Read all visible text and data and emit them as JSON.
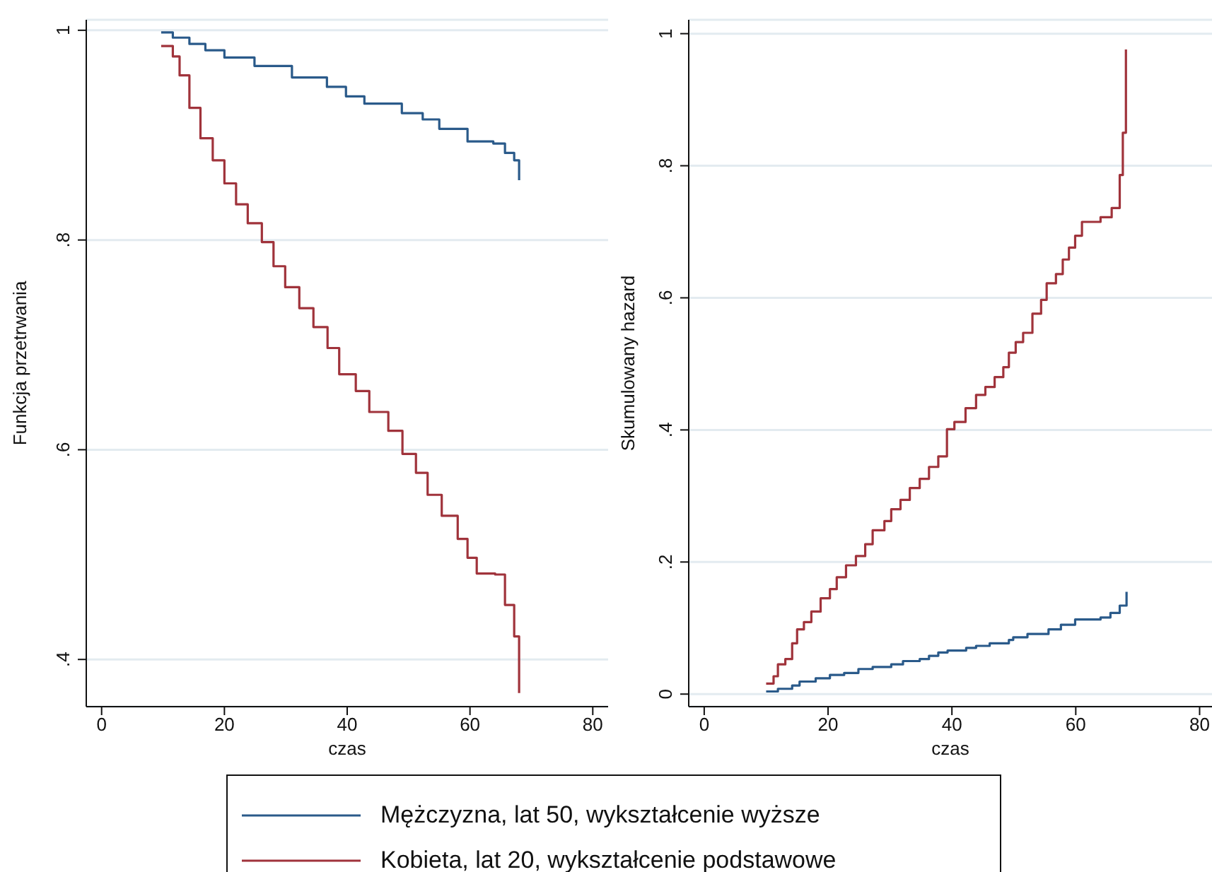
{
  "chart_data": [
    {
      "type": "step",
      "xlabel": "czas",
      "ylabel": "Funkcja przetrwania",
      "xlim": [
        -2.5,
        82.5
      ],
      "xticks": [
        0,
        20,
        40,
        60,
        80
      ],
      "ylim": [
        0.355,
        1.01
      ],
      "yticks": [
        {
          "value": 0.4,
          "label": ".4"
        },
        {
          "value": 0.6,
          "label": ".6"
        },
        {
          "value": 0.8,
          "label": ".8"
        },
        {
          "value": 1,
          "label": "1"
        }
      ],
      "grid": "y",
      "legend": "bottom",
      "series": [
        {
          "name": "Mężczyzna, lat 50, wykształcenie wyższe",
          "color": "#2a5a8a",
          "x": [
            9.7,
            11.6,
            14.3,
            16.9,
            20,
            24.9,
            31,
            36.7,
            39.8,
            42.8,
            48.9,
            52.3,
            55,
            59.6,
            63.8,
            65.7,
            67.2,
            68
          ],
          "values": [
            0.998,
            0.993,
            0.987,
            0.981,
            0.974,
            0.966,
            0.955,
            0.946,
            0.937,
            0.93,
            0.921,
            0.915,
            0.906,
            0.894,
            0.892,
            0.883,
            0.876,
            0.857
          ]
        },
        {
          "name": "Kobieta, lat 20, wykształcenie podstawowe",
          "color": "#a0333b",
          "x": [
            9.7,
            11.6,
            12.7,
            14.3,
            16.1,
            18.1,
            20,
            21.9,
            23.8,
            26.1,
            28,
            29.9,
            32.2,
            34.5,
            36.8,
            38.7,
            41.4,
            43.6,
            46.7,
            49,
            51.2,
            53.1,
            55.4,
            58,
            59.6,
            61.1,
            64.1,
            65.7,
            67.2,
            68
          ],
          "values": [
            0.985,
            0.975,
            0.957,
            0.926,
            0.897,
            0.876,
            0.854,
            0.834,
            0.816,
            0.798,
            0.775,
            0.755,
            0.735,
            0.717,
            0.697,
            0.672,
            0.656,
            0.636,
            0.618,
            0.596,
            0.578,
            0.557,
            0.537,
            0.515,
            0.497,
            0.482,
            0.481,
            0.452,
            0.422,
            0.368
          ]
        }
      ]
    },
    {
      "type": "step",
      "xlabel": "czas",
      "ylabel": "Skumulowany hazard",
      "xlim": [
        -2.5,
        82
      ],
      "xticks": [
        0,
        20,
        40,
        60,
        80
      ],
      "ylim": [
        -0.019,
        1.021
      ],
      "yticks": [
        0,
        {
          "value": 0.2,
          "label": ".2"
        },
        {
          "value": 0.4,
          "label": ".4"
        },
        {
          "value": 0.6,
          "label": ".6"
        },
        {
          "value": 0.8,
          "label": ".8"
        },
        1
      ],
      "grid": "y",
      "series": [
        {
          "color": "#2a5a8a",
          "x": [
            10,
            11.9,
            14.2,
            15.4,
            18,
            20.3,
            22.6,
            24.9,
            27.2,
            30.2,
            32.1,
            34.8,
            36.3,
            37.8,
            39.3,
            42.3,
            43.9,
            46.1,
            49.2,
            49.9,
            52.2,
            55.6,
            57.6,
            59.9,
            64,
            65.6,
            67.1,
            68.2
          ],
          "values": [
            0.004,
            0.008,
            0.013,
            0.019,
            0.024,
            0.029,
            0.032,
            0.038,
            0.041,
            0.045,
            0.05,
            0.053,
            0.058,
            0.063,
            0.066,
            0.07,
            0.073,
            0.077,
            0.082,
            0.086,
            0.091,
            0.098,
            0.105,
            0.113,
            0.116,
            0.123,
            0.134,
            0.155
          ]
        },
        {
          "color": "#a0333b",
          "x": [
            10,
            11.2,
            11.9,
            13.1,
            14.2,
            15,
            16.1,
            17.3,
            18.8,
            20.3,
            21.4,
            22.9,
            24.5,
            26,
            27.2,
            29.1,
            30.2,
            31.7,
            33.2,
            34.8,
            36.3,
            37.8,
            39.2,
            40.4,
            42.2,
            43.9,
            45.4,
            46.9,
            48.3,
            49.2,
            50.3,
            51.5,
            53,
            54.4,
            55.3,
            56.8,
            57.9,
            58.9,
            59.9,
            61,
            64,
            65.8,
            67.1,
            67.6,
            68.1
          ],
          "values": [
            0.016,
            0.027,
            0.045,
            0.053,
            0.077,
            0.098,
            0.109,
            0.125,
            0.145,
            0.159,
            0.177,
            0.195,
            0.209,
            0.227,
            0.248,
            0.262,
            0.28,
            0.294,
            0.312,
            0.326,
            0.344,
            0.36,
            0.401,
            0.412,
            0.433,
            0.453,
            0.465,
            0.48,
            0.495,
            0.517,
            0.533,
            0.547,
            0.576,
            0.597,
            0.622,
            0.636,
            0.658,
            0.676,
            0.694,
            0.715,
            0.722,
            0.736,
            0.786,
            0.85,
            0.976
          ]
        }
      ]
    }
  ]
}
